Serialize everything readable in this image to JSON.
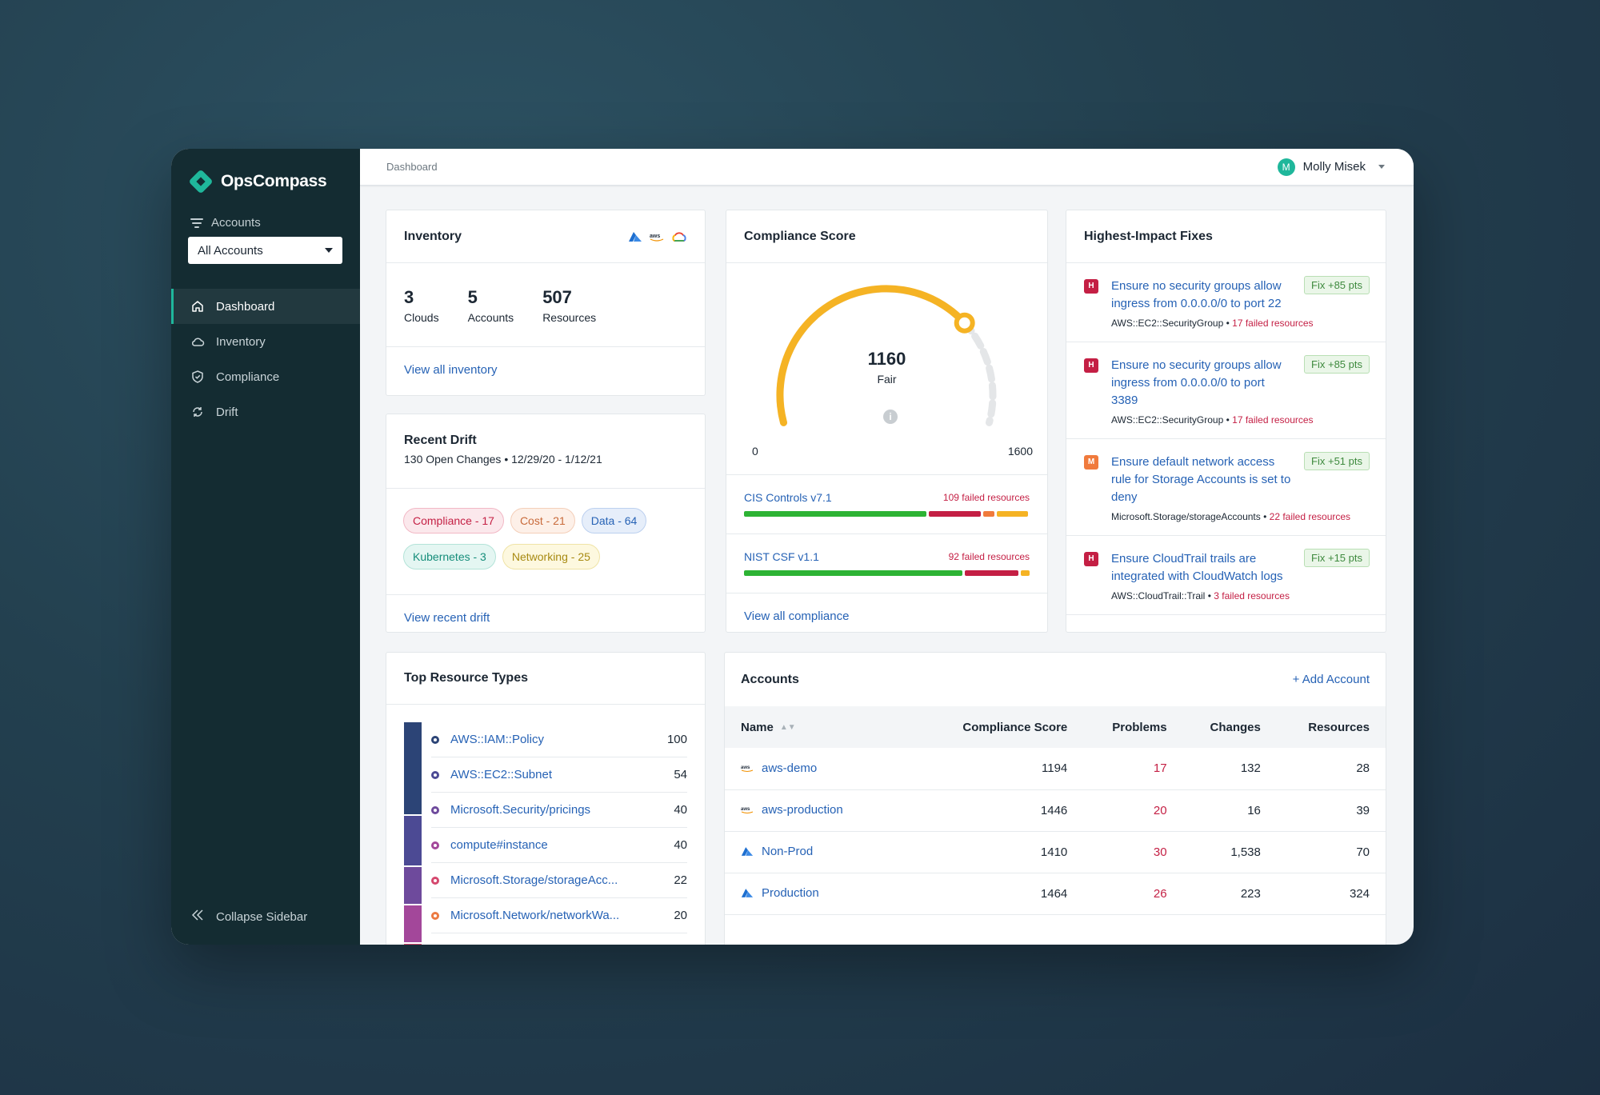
{
  "app": {
    "name": "OpsCompass"
  },
  "sidebar": {
    "accounts_label": "Accounts",
    "account_select": "All Accounts",
    "items": [
      {
        "label": "Dashboard",
        "icon": "home-icon",
        "active": true
      },
      {
        "label": "Inventory",
        "icon": "cloud-icon",
        "active": false
      },
      {
        "label": "Compliance",
        "icon": "shield-icon",
        "active": false
      },
      {
        "label": "Drift",
        "icon": "refresh-icon",
        "active": false
      }
    ],
    "collapse_label": "Collapse Sidebar"
  },
  "topbar": {
    "breadcrumb": "Dashboard",
    "user_initial": "M",
    "user_name": "Molly Misek"
  },
  "inventory": {
    "title": "Inventory",
    "stats": [
      {
        "value": "3",
        "label": "Clouds"
      },
      {
        "value": "5",
        "label": "Accounts"
      },
      {
        "value": "507",
        "label": "Resources"
      }
    ],
    "link": "View all inventory"
  },
  "drift": {
    "title": "Recent Drift",
    "subtitle": "130 Open Changes • 12/29/20 - 1/12/21",
    "pills": [
      {
        "label": "Compliance - 17",
        "color": "#c41f44",
        "bg": "#fbe8ec",
        "border": "#f2b8c5"
      },
      {
        "label": "Cost - 21",
        "color": "#c86a3a",
        "bg": "#fdf0e8",
        "border": "#f4cfb9"
      },
      {
        "label": "Data - 64",
        "color": "#2662b5",
        "bg": "#e6eefa",
        "border": "#bcd0ef"
      },
      {
        "label": "Kubernetes - 3",
        "color": "#158d7a",
        "bg": "#e4f6f2",
        "border": "#b3e3d8"
      },
      {
        "label": "Networking - 25",
        "color": "#a88a12",
        "bg": "#fdf8df",
        "border": "#efe3a6"
      }
    ],
    "link": "View recent drift"
  },
  "compliance": {
    "title": "Compliance Score",
    "score": "1160",
    "rating": "Fair",
    "min": "0",
    "max": "1600",
    "score_value": 1160,
    "max_value": 1600,
    "frameworks": [
      {
        "name": "CIS Controls v7.1",
        "failed": "109 failed resources",
        "segments": [
          {
            "pct": 64,
            "color": "#2db334"
          },
          {
            "pct": 18,
            "color": "#c41f44"
          },
          {
            "pct": 4,
            "color": "#f07a3c"
          },
          {
            "pct": 11,
            "color": "#f5b324"
          }
        ]
      },
      {
        "name": "NIST CSF v1.1",
        "failed": "92 failed resources",
        "segments": [
          {
            "pct": 77,
            "color": "#2db334"
          },
          {
            "pct": 19,
            "color": "#c41f44"
          },
          {
            "pct": 3,
            "color": "#f5b324"
          }
        ]
      }
    ],
    "link": "View all compliance"
  },
  "fixes": {
    "title": "Highest-Impact Fixes",
    "items": [
      {
        "severity": "H",
        "sev_color": "#c41f44",
        "title": "Ensure no security groups allow ingress from 0.0.0.0/0 to port 22",
        "resource": "AWS::EC2::SecurityGroup",
        "failed": "17 failed resources",
        "pts": "Fix +85 pts"
      },
      {
        "severity": "H",
        "sev_color": "#c41f44",
        "title": "Ensure no security groups allow ingress from 0.0.0.0/0 to port 3389",
        "resource": "AWS::EC2::SecurityGroup",
        "failed": "17 failed resources",
        "pts": "Fix +85 pts"
      },
      {
        "severity": "M",
        "sev_color": "#f07a3c",
        "title": "Ensure default network access rule for Storage Accounts is set to deny",
        "resource": "Microsoft.Storage/storageAccounts",
        "failed": "22 failed resources",
        "pts": "Fix +51 pts"
      },
      {
        "severity": "H",
        "sev_color": "#c41f44",
        "title": "Ensure CloudTrail trails are integrated with CloudWatch logs",
        "resource": "AWS::CloudTrail::Trail",
        "failed": "3 failed resources",
        "pts": "Fix +15 pts"
      }
    ]
  },
  "resource_types": {
    "title": "Top Resource Types",
    "items": [
      {
        "name": "AWS::IAM::Policy",
        "value": "100",
        "count": 100,
        "color": "#2c4476"
      },
      {
        "name": "AWS::EC2::Subnet",
        "value": "54",
        "count": 54,
        "color": "#4c4a94"
      },
      {
        "name": "Microsoft.Security/pricings",
        "value": "40",
        "count": 40,
        "color": "#6e4a9c"
      },
      {
        "name": "compute#instance",
        "value": "40",
        "count": 40,
        "color": "#a3479a"
      },
      {
        "name": "Microsoft.Storage/storageAcc...",
        "value": "22",
        "count": 22,
        "color": "#d5486e"
      },
      {
        "name": "Microsoft.Network/networkWa...",
        "value": "20",
        "count": 20,
        "color": "#ec7a42"
      }
    ]
  },
  "accounts": {
    "title": "Accounts",
    "add_label": "+ Add Account",
    "columns": [
      "Name",
      "Compliance Score",
      "Problems",
      "Changes",
      "Resources"
    ],
    "rows": [
      {
        "provider": "aws",
        "name": "aws-demo",
        "score": "1194",
        "problems": "17",
        "changes": "132",
        "resources": "28"
      },
      {
        "provider": "aws",
        "name": "aws-production",
        "score": "1446",
        "problems": "20",
        "changes": "16",
        "resources": "39"
      },
      {
        "provider": "azure",
        "name": "Non-Prod",
        "score": "1410",
        "problems": "30",
        "changes": "1,538",
        "resources": "70"
      },
      {
        "provider": "azure",
        "name": "Production",
        "score": "1464",
        "problems": "26",
        "changes": "223",
        "resources": "324"
      }
    ]
  }
}
